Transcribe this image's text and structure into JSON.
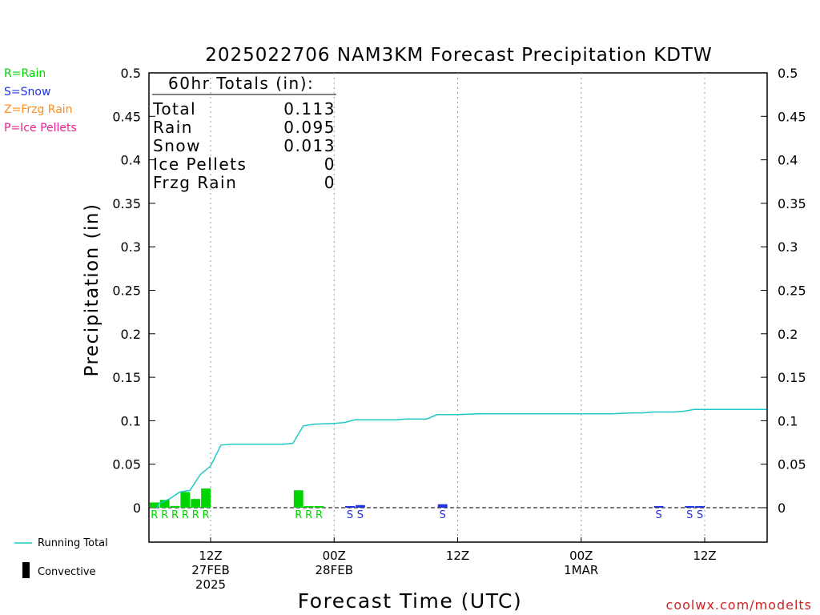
{
  "colors": {
    "rain": "#00d400",
    "snow": "#2233dd",
    "frzg_rain": "#ff8c1a",
    "ice_pellets": "#e8208e",
    "running_total": "#20c8c8",
    "convective": "#000000",
    "credit": "#cc2222"
  },
  "type_legend": {
    "rain": "R=Rain",
    "snow": "S=Snow",
    "frzg_rain": "Z=Frzg Rain",
    "ice_pellets": "P=Ice Pellets"
  },
  "bottom_legend": {
    "running_total": "Running Total",
    "convective": "Convective"
  },
  "totals": {
    "header": "60hr Totals (in):",
    "rows": [
      {
        "label": "Total",
        "value": "0.113"
      },
      {
        "label": "Rain",
        "value": "0.095"
      },
      {
        "label": "Snow",
        "value": "0.013"
      },
      {
        "label": "Ice Pellets",
        "value": "0"
      },
      {
        "label": "Frzg Rain",
        "value": "0"
      }
    ]
  },
  "credit": "coolwx.com/modelts",
  "chart_data": {
    "type": "bar",
    "title": "2025022706 NAM3KM Forecast Precipitation KDTW",
    "xlabel": "Forecast Time (UTC)",
    "ylabel": "Precipitation (in)",
    "ylim": [
      0,
      0.5
    ],
    "yticks": [
      "0",
      "0.05",
      "0.1",
      "0.15",
      "0.2",
      "0.25",
      "0.3",
      "0.35",
      "0.4",
      "0.45",
      "0.5"
    ],
    "xlim_hours": [
      0,
      60
    ],
    "x_ticks": [
      {
        "hour": 6,
        "lines": [
          "12Z",
          "27FEB",
          "2025"
        ]
      },
      {
        "hour": 18,
        "lines": [
          "00Z",
          "28FEB"
        ]
      },
      {
        "hour": 30,
        "lines": [
          "12Z"
        ]
      },
      {
        "hour": 42,
        "lines": [
          "00Z",
          "1MAR"
        ]
      },
      {
        "hour": 54,
        "lines": [
          "12Z"
        ]
      }
    ],
    "grid": "vertical dotted at tick hours",
    "hourly_precip": [
      {
        "hour": 1,
        "value": 0.006,
        "type": "R"
      },
      {
        "hour": 2,
        "value": 0.009,
        "type": "R"
      },
      {
        "hour": 3,
        "value": 0.002,
        "type": "R"
      },
      {
        "hour": 4,
        "value": 0.018,
        "type": "R"
      },
      {
        "hour": 5,
        "value": 0.01,
        "type": "R"
      },
      {
        "hour": 6,
        "value": 0.022,
        "type": "R"
      },
      {
        "hour": 15,
        "value": 0.02,
        "type": "R"
      },
      {
        "hour": 16,
        "value": 0.001,
        "type": "R"
      },
      {
        "hour": 17,
        "value": 0.0,
        "type": "R"
      },
      {
        "hour": 20,
        "value": 0.0,
        "type": "S"
      },
      {
        "hour": 21,
        "value": 0.003,
        "type": "S"
      },
      {
        "hour": 29,
        "value": 0.004,
        "type": "S"
      },
      {
        "hour": 50,
        "value": 0.001,
        "type": "S"
      },
      {
        "hour": 53,
        "value": 0.0,
        "type": "S"
      },
      {
        "hour": 54,
        "value": 0.001,
        "type": "S"
      }
    ],
    "running_total": [
      [
        0,
        0.0
      ],
      [
        1,
        0.005
      ],
      [
        2,
        0.01
      ],
      [
        3,
        0.018
      ],
      [
        4,
        0.02
      ],
      [
        5,
        0.038
      ],
      [
        6,
        0.048
      ],
      [
        7,
        0.072
      ],
      [
        8,
        0.073
      ],
      [
        13,
        0.073
      ],
      [
        14,
        0.074
      ],
      [
        15,
        0.094
      ],
      [
        16,
        0.096
      ],
      [
        18,
        0.097
      ],
      [
        19,
        0.098
      ],
      [
        20,
        0.101
      ],
      [
        24,
        0.101
      ],
      [
        25,
        0.102
      ],
      [
        27,
        0.102
      ],
      [
        28,
        0.107
      ],
      [
        30,
        0.107
      ],
      [
        32,
        0.108
      ],
      [
        45,
        0.108
      ],
      [
        47,
        0.109
      ],
      [
        48,
        0.109
      ],
      [
        49,
        0.11
      ],
      [
        51,
        0.11
      ],
      [
        52,
        0.111
      ],
      [
        53,
        0.113
      ],
      [
        60,
        0.113
      ]
    ]
  }
}
